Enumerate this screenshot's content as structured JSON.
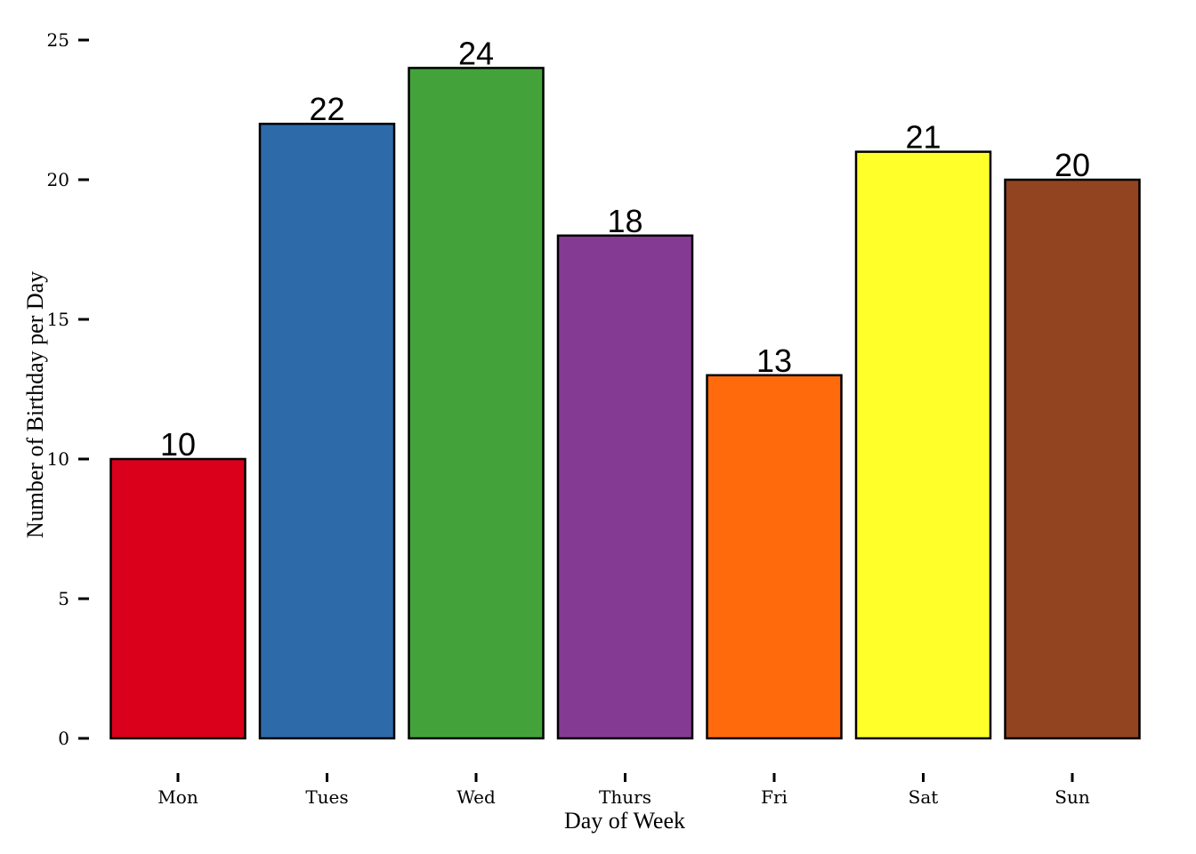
{
  "chart_data": {
    "type": "bar",
    "categories": [
      "Mon",
      "Tues",
      "Wed",
      "Thurs",
      "Fri",
      "Sat",
      "Sun"
    ],
    "values": [
      10,
      22,
      24,
      18,
      13,
      21,
      20
    ],
    "colors": [
      "#DA001C",
      "#2D6AAA",
      "#43A33A",
      "#843A93",
      "#FF6A0C",
      "#FFFF2A",
      "#924320"
    ],
    "data_labels": [
      "10",
      "22",
      "24",
      "18",
      "13",
      "21",
      "20"
    ],
    "title": "",
    "xlabel": "Day of Week",
    "ylabel": "Number of Birthday per Day",
    "ylim": [
      0,
      25
    ],
    "yticks": [
      0,
      5,
      10,
      15,
      20,
      25
    ],
    "grid": false,
    "legend": "none"
  }
}
